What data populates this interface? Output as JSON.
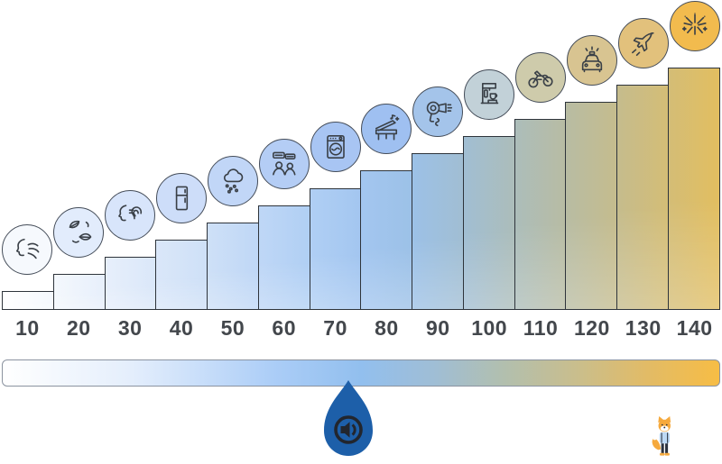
{
  "chart_data": {
    "type": "bar",
    "categories": [
      "10",
      "20",
      "30",
      "40",
      "50",
      "60",
      "70",
      "80",
      "90",
      "100",
      "110",
      "120",
      "130",
      "140"
    ],
    "values": [
      10,
      20,
      30,
      40,
      50,
      60,
      70,
      80,
      90,
      100,
      110,
      120,
      130,
      140
    ],
    "xlabel": "",
    "ylabel": "",
    "ylim": [
      0,
      140
    ],
    "grid": false,
    "legend": "none",
    "items": [
      {
        "label": "10",
        "icon": "breathing-icon",
        "circle_color": "#f6f9fd"
      },
      {
        "label": "20",
        "icon": "falling-leaves-icon",
        "circle_color": "#e2ecfc"
      },
      {
        "label": "30",
        "icon": "whisper-icon",
        "circle_color": "#d8e5fb"
      },
      {
        "label": "40",
        "icon": "refrigerator-icon",
        "circle_color": "#cdddf9"
      },
      {
        "label": "50",
        "icon": "rain-icon",
        "circle_color": "#c1d6f7"
      },
      {
        "label": "60",
        "icon": "conversation-icon",
        "circle_color": "#b4cdf5"
      },
      {
        "label": "70",
        "icon": "washing-machine-icon",
        "circle_color": "#a8c5f3"
      },
      {
        "label": "80",
        "icon": "piano-icon",
        "circle_color": "#9fc0f1"
      },
      {
        "label": "90",
        "icon": "hair-dryer-icon",
        "circle_color": "#a4c4ea"
      },
      {
        "label": "100",
        "icon": "espresso-machine-icon",
        "circle_color": "#c2d1d8"
      },
      {
        "label": "110",
        "icon": "motorcycle-icon",
        "circle_color": "#cecbab"
      },
      {
        "label": "120",
        "icon": "car-siren-icon",
        "circle_color": "#d8c491"
      },
      {
        "label": "130",
        "icon": "fighter-jet-icon",
        "circle_color": "#e2c17c"
      },
      {
        "label": "140",
        "icon": "fireworks-icon",
        "circle_color": "#f2bb4e"
      }
    ],
    "bar_ramp_stops": [
      {
        "pos": 0.0,
        "color": "#ffffff"
      },
      {
        "pos": 0.08,
        "color": "#f3f7fd"
      },
      {
        "pos": 0.18,
        "color": "#e0ebfa"
      },
      {
        "pos": 0.3,
        "color": "#cbdef7"
      },
      {
        "pos": 0.42,
        "color": "#b2d0f4"
      },
      {
        "pos": 0.52,
        "color": "#9fc4ef"
      },
      {
        "pos": 0.6,
        "color": "#9bbfe2"
      },
      {
        "pos": 0.68,
        "color": "#a6bdc6"
      },
      {
        "pos": 0.76,
        "color": "#b3bcaa"
      },
      {
        "pos": 0.84,
        "color": "#c2bc93"
      },
      {
        "pos": 0.92,
        "color": "#d2bd79"
      },
      {
        "pos": 1.0,
        "color": "#e2be60"
      }
    ]
  },
  "scale_bar": {
    "gradient_stops": [
      {
        "pos": 0.0,
        "color": "#ffffff"
      },
      {
        "pos": 0.18,
        "color": "#e4eefc"
      },
      {
        "pos": 0.38,
        "color": "#abcdf7"
      },
      {
        "pos": 0.5,
        "color": "#92bfee"
      },
      {
        "pos": 0.6,
        "color": "#9fbed6"
      },
      {
        "pos": 0.7,
        "color": "#b2bfae"
      },
      {
        "pos": 0.8,
        "color": "#c9be8d"
      },
      {
        "pos": 0.9,
        "color": "#e2bb66"
      },
      {
        "pos": 1.0,
        "color": "#f7bd45"
      }
    ]
  },
  "marker": {
    "shape": "water-drop",
    "icon": "speaker-icon",
    "color": "#1d5fa9",
    "icon_color": "#22262e"
  },
  "mascot": {
    "name": "fox-mascot",
    "fur_color": "#f5a93d",
    "shirt_color": "#bcd9f5",
    "pants_color": "#2c3340"
  },
  "colors": {
    "outline": "#2e343b",
    "label_color": "#43474c",
    "circle_border": "#454d59",
    "icon_stroke": "#3a4047"
  }
}
